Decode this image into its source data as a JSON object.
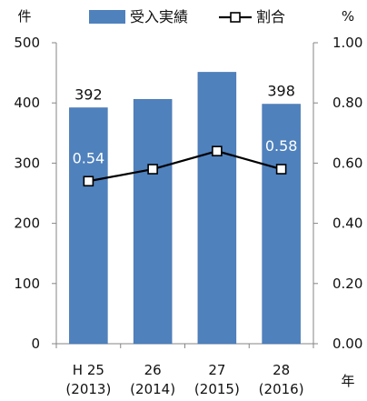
{
  "chart_data": {
    "type": "bar",
    "categories": [
      [
        "H 25",
        "(2013)"
      ],
      [
        "26",
        "(2014)"
      ],
      [
        "27",
        "(2015)"
      ],
      [
        "28",
        "(2016)"
      ]
    ],
    "series": [
      {
        "name": "受入実績",
        "type": "bar",
        "axis": "left",
        "color": "#4f81bd",
        "values": [
          392,
          406,
          451,
          398
        ]
      },
      {
        "name": "割合",
        "type": "line",
        "axis": "right",
        "color": "#000000",
        "values": [
          0.54,
          0.58,
          0.64,
          0.58
        ]
      }
    ],
    "data_labels": [
      {
        "series": 0,
        "index": 0,
        "text": "392",
        "color": "#111111"
      },
      {
        "series": 0,
        "index": 3,
        "text": "398",
        "color": "#111111"
      },
      {
        "series": 1,
        "index": 0,
        "text": "0.54",
        "color": "#ffffff"
      },
      {
        "series": 1,
        "index": 3,
        "text": "0.58",
        "color": "#ffffff"
      }
    ],
    "y_left": {
      "unit": "件",
      "ylim": [
        0,
        500
      ],
      "ticks": [
        "0",
        "100",
        "200",
        "300",
        "400",
        "500"
      ]
    },
    "y_right": {
      "unit": "%",
      "ylim": [
        0,
        1
      ],
      "ticks": [
        "0.00",
        "0.20",
        "0.40",
        "0.60",
        "0.80",
        "1.00"
      ]
    },
    "x_unit": "年",
    "legend_position": "top",
    "grid": false
  }
}
